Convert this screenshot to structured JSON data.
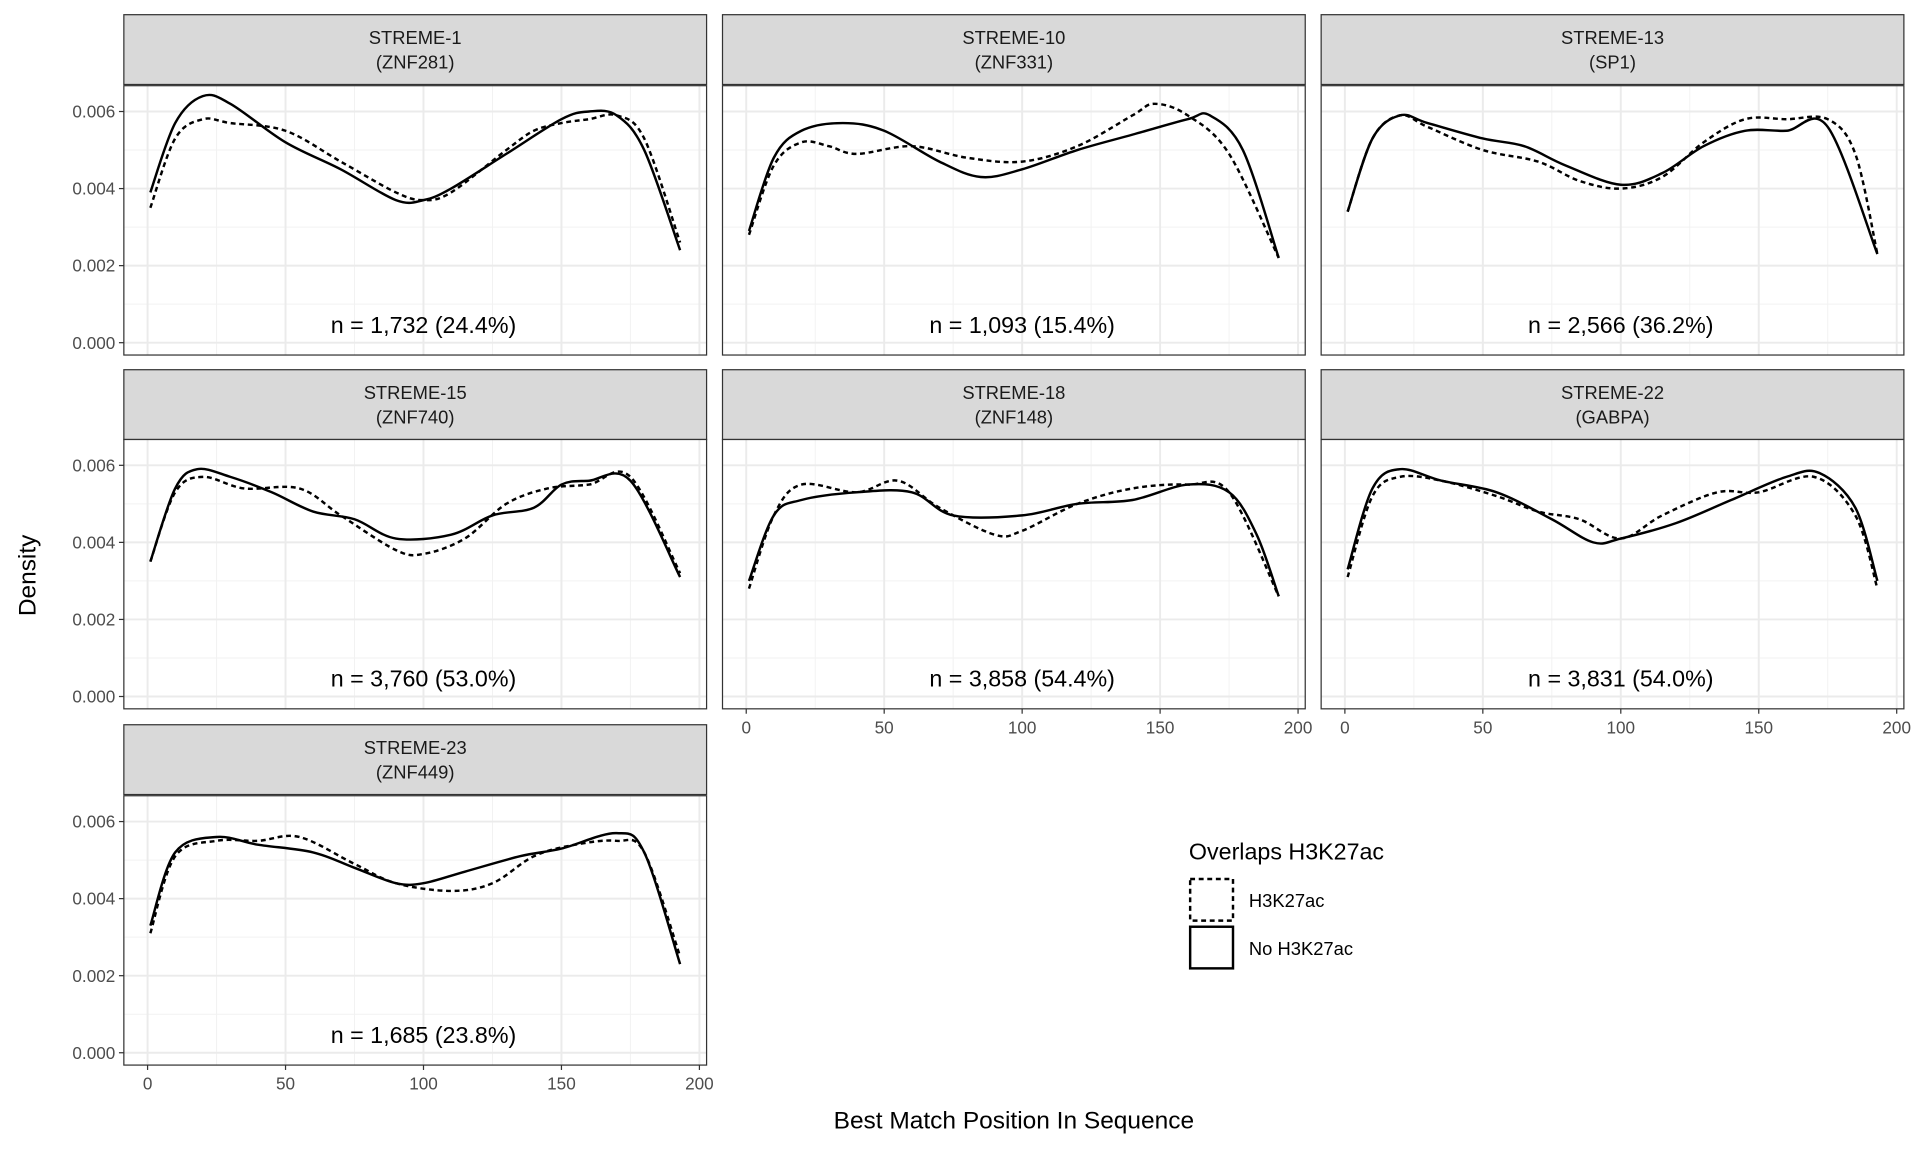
{
  "chart_data": {
    "type": "line",
    "xlabel": "Best Match Position In Sequence",
    "ylabel": "Density",
    "xlim": [
      -8.6,
      202.6
    ],
    "ylim": [
      -0.00032,
      0.00667
    ],
    "x_ticks": [
      "0",
      "50",
      "100",
      "150",
      "200"
    ],
    "x_tick_values": [
      0,
      50,
      100,
      150,
      200
    ],
    "y_ticks": [
      "0.000",
      "0.002",
      "0.004",
      "0.006"
    ],
    "y_tick_values": [
      0,
      0.002,
      0.004,
      0.006
    ],
    "grid": true,
    "legend": {
      "title": "Overlaps H3K27ac",
      "placement": "bottom-right",
      "entries": [
        {
          "label": "H3K27ac",
          "linetype": "dashed"
        },
        {
          "label": "No H3K27ac",
          "linetype": "solid"
        }
      ]
    },
    "facets": [
      {
        "title": "STREME-1",
        "subtitle": "(ZNF281)",
        "annotation": "n = 1,732 (24.4%)",
        "series": {
          "H3K27ac": [
            [
              1,
              0.0035
            ],
            [
              10,
              0.0053
            ],
            [
              20,
              0.0058
            ],
            [
              30,
              0.0057
            ],
            [
              50,
              0.0055
            ],
            [
              70,
              0.0047
            ],
            [
              90,
              0.0039
            ],
            [
              100,
              0.0037
            ],
            [
              110,
              0.0039
            ],
            [
              130,
              0.005
            ],
            [
              140,
              0.0055
            ],
            [
              150,
              0.0057
            ],
            [
              160,
              0.0058
            ],
            [
              170,
              0.0059
            ],
            [
              180,
              0.0053
            ],
            [
              193,
              0.0026
            ]
          ],
          "No H3K27ac": [
            [
              1,
              0.0039
            ],
            [
              10,
              0.0057
            ],
            [
              20,
              0.0064
            ],
            [
              30,
              0.0062
            ],
            [
              50,
              0.0052
            ],
            [
              70,
              0.0045
            ],
            [
              90,
              0.0037
            ],
            [
              100,
              0.0037
            ],
            [
              110,
              0.004
            ],
            [
              130,
              0.0049
            ],
            [
              150,
              0.0058
            ],
            [
              160,
              0.006
            ],
            [
              170,
              0.0059
            ],
            [
              180,
              0.005
            ],
            [
              193,
              0.0024
            ]
          ]
        }
      },
      {
        "title": "STREME-10",
        "subtitle": "(ZNF331)",
        "annotation": "n = 1,093 (15.4%)",
        "series": {
          "H3K27ac": [
            [
              1,
              0.0028
            ],
            [
              10,
              0.0046
            ],
            [
              20,
              0.0052
            ],
            [
              30,
              0.0051
            ],
            [
              40,
              0.0049
            ],
            [
              60,
              0.0051
            ],
            [
              80,
              0.0048
            ],
            [
              100,
              0.0047
            ],
            [
              120,
              0.0051
            ],
            [
              140,
              0.0059
            ],
            [
              148,
              0.0062
            ],
            [
              160,
              0.0059
            ],
            [
              175,
              0.0049
            ],
            [
              193,
              0.0022
            ]
          ],
          "No H3K27ac": [
            [
              1,
              0.0029
            ],
            [
              10,
              0.0048
            ],
            [
              20,
              0.0055
            ],
            [
              35,
              0.0057
            ],
            [
              50,
              0.0055
            ],
            [
              70,
              0.0047
            ],
            [
              85,
              0.0043
            ],
            [
              100,
              0.0045
            ],
            [
              120,
              0.005
            ],
            [
              140,
              0.0054
            ],
            [
              160,
              0.0058
            ],
            [
              168,
              0.0059
            ],
            [
              180,
              0.005
            ],
            [
              193,
              0.0022
            ]
          ]
        }
      },
      {
        "title": "STREME-13",
        "subtitle": "(SP1)",
        "annotation": "n = 2,566 (36.2%)",
        "series": {
          "H3K27ac": [
            [
              1,
              0.0034
            ],
            [
              10,
              0.0053
            ],
            [
              20,
              0.0059
            ],
            [
              30,
              0.0056
            ],
            [
              50,
              0.005
            ],
            [
              70,
              0.0047
            ],
            [
              85,
              0.0042
            ],
            [
              100,
              0.004
            ],
            [
              115,
              0.0043
            ],
            [
              130,
              0.0052
            ],
            [
              145,
              0.0058
            ],
            [
              160,
              0.0058
            ],
            [
              175,
              0.0058
            ],
            [
              185,
              0.0049
            ],
            [
              193,
              0.0023
            ]
          ],
          "No H3K27ac": [
            [
              1,
              0.0034
            ],
            [
              10,
              0.0053
            ],
            [
              20,
              0.0059
            ],
            [
              30,
              0.0057
            ],
            [
              50,
              0.0053
            ],
            [
              65,
              0.0051
            ],
            [
              80,
              0.0046
            ],
            [
              100,
              0.0041
            ],
            [
              115,
              0.0044
            ],
            [
              130,
              0.0051
            ],
            [
              145,
              0.0055
            ],
            [
              160,
              0.0055
            ],
            [
              175,
              0.0056
            ],
            [
              193,
              0.0023
            ]
          ]
        }
      },
      {
        "title": "STREME-15",
        "subtitle": "(ZNF740)",
        "annotation": "n = 3,760 (53.0%)",
        "series": {
          "H3K27ac": [
            [
              1,
              0.0035
            ],
            [
              10,
              0.0053
            ],
            [
              20,
              0.0057
            ],
            [
              35,
              0.0054
            ],
            [
              55,
              0.0054
            ],
            [
              70,
              0.0047
            ],
            [
              90,
              0.0038
            ],
            [
              100,
              0.0037
            ],
            [
              115,
              0.0041
            ],
            [
              130,
              0.005
            ],
            [
              145,
              0.0054
            ],
            [
              160,
              0.0055
            ],
            [
              175,
              0.0057
            ],
            [
              193,
              0.0032
            ]
          ],
          "No H3K27ac": [
            [
              1,
              0.0035
            ],
            [
              10,
              0.0054
            ],
            [
              18,
              0.0059
            ],
            [
              30,
              0.0057
            ],
            [
              45,
              0.0053
            ],
            [
              60,
              0.0048
            ],
            [
              75,
              0.0046
            ],
            [
              90,
              0.0041
            ],
            [
              110,
              0.0042
            ],
            [
              125,
              0.0047
            ],
            [
              140,
              0.0049
            ],
            [
              150,
              0.0055
            ],
            [
              160,
              0.0056
            ],
            [
              175,
              0.0056
            ],
            [
              193,
              0.0031
            ]
          ]
        }
      },
      {
        "title": "STREME-18",
        "subtitle": "(ZNF148)",
        "annotation": "n = 3,858 (54.4%)",
        "series": {
          "H3K27ac": [
            [
              1,
              0.0028
            ],
            [
              10,
              0.0047
            ],
            [
              20,
              0.0055
            ],
            [
              40,
              0.0053
            ],
            [
              55,
              0.0056
            ],
            [
              70,
              0.0049
            ],
            [
              90,
              0.0042
            ],
            [
              100,
              0.0043
            ],
            [
              120,
              0.005
            ],
            [
              140,
              0.0054
            ],
            [
              160,
              0.0055
            ],
            [
              175,
              0.0053
            ],
            [
              193,
              0.0026
            ]
          ],
          "No H3K27ac": [
            [
              1,
              0.003
            ],
            [
              10,
              0.0047
            ],
            [
              20,
              0.0051
            ],
            [
              40,
              0.0053
            ],
            [
              60,
              0.0053
            ],
            [
              75,
              0.0047
            ],
            [
              100,
              0.0047
            ],
            [
              120,
              0.005
            ],
            [
              140,
              0.0051
            ],
            [
              160,
              0.0055
            ],
            [
              175,
              0.0053
            ],
            [
              185,
              0.0042
            ],
            [
              193,
              0.0026
            ]
          ]
        }
      },
      {
        "title": "STREME-22",
        "subtitle": "(GABPA)",
        "annotation": "n = 3,831 (54.0%)",
        "series": {
          "H3K27ac": [
            [
              1,
              0.0031
            ],
            [
              10,
              0.0052
            ],
            [
              20,
              0.0057
            ],
            [
              35,
              0.0056
            ],
            [
              55,
              0.0052
            ],
            [
              70,
              0.0048
            ],
            [
              85,
              0.0046
            ],
            [
              100,
              0.0041
            ],
            [
              115,
              0.0047
            ],
            [
              135,
              0.0053
            ],
            [
              150,
              0.0053
            ],
            [
              170,
              0.0057
            ],
            [
              185,
              0.0047
            ],
            [
              193,
              0.0028
            ]
          ],
          "No H3K27ac": [
            [
              1,
              0.0033
            ],
            [
              10,
              0.0054
            ],
            [
              20,
              0.0059
            ],
            [
              35,
              0.0056
            ],
            [
              55,
              0.0053
            ],
            [
              75,
              0.0046
            ],
            [
              90,
              0.004
            ],
            [
              100,
              0.0041
            ],
            [
              120,
              0.0045
            ],
            [
              140,
              0.0051
            ],
            [
              160,
              0.0057
            ],
            [
              172,
              0.0058
            ],
            [
              185,
              0.0049
            ],
            [
              193,
              0.003
            ]
          ]
        }
      },
      {
        "title": "STREME-23",
        "subtitle": "(ZNF449)",
        "annotation": "n = 1,685 (23.8%)",
        "series": {
          "H3K27ac": [
            [
              1,
              0.0031
            ],
            [
              10,
              0.0051
            ],
            [
              25,
              0.0055
            ],
            [
              40,
              0.0055
            ],
            [
              55,
              0.0056
            ],
            [
              75,
              0.0049
            ],
            [
              90,
              0.0044
            ],
            [
              110,
              0.0042
            ],
            [
              125,
              0.0044
            ],
            [
              140,
              0.0051
            ],
            [
              155,
              0.0054
            ],
            [
              170,
              0.0055
            ],
            [
              180,
              0.0052
            ],
            [
              193,
              0.0025
            ]
          ],
          "No H3K27ac": [
            [
              1,
              0.0033
            ],
            [
              10,
              0.0052
            ],
            [
              25,
              0.0056
            ],
            [
              40,
              0.0054
            ],
            [
              60,
              0.0052
            ],
            [
              75,
              0.0048
            ],
            [
              90,
              0.0044
            ],
            [
              100,
              0.0044
            ],
            [
              115,
              0.0047
            ],
            [
              135,
              0.0051
            ],
            [
              150,
              0.0053
            ],
            [
              170,
              0.0057
            ],
            [
              180,
              0.0052
            ],
            [
              193,
              0.0023
            ]
          ]
        }
      }
    ],
    "colors": {
      "line": "#000000",
      "strip": "#d9d9d9",
      "grid": "#ebebeb",
      "border": "#333333"
    }
  }
}
